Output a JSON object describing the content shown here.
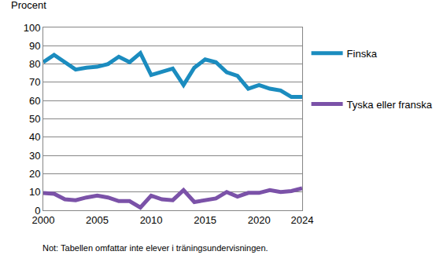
{
  "chart_data": {
    "type": "line",
    "y_label": "Procent",
    "note": "Not: Tabellen omfattar inte elever i träningsundervisningen.",
    "x": [
      2000,
      2001,
      2002,
      2003,
      2004,
      2005,
      2006,
      2007,
      2008,
      2009,
      2010,
      2011,
      2012,
      2013,
      2014,
      2015,
      2016,
      2017,
      2018,
      2019,
      2020,
      2021,
      2022,
      2023,
      2024
    ],
    "series": [
      {
        "name": "Finska",
        "color": "#1b8cbf",
        "values": [
          81,
          85,
          81,
          77,
          78,
          78.5,
          80,
          84,
          81,
          86,
          74,
          76,
          77.5,
          68.5,
          78,
          82.5,
          81,
          75.5,
          73.5,
          66.5,
          68.5,
          66.5,
          65.5,
          62,
          62
        ]
      },
      {
        "name": "Tyska eller franska",
        "color": "#7b52a8",
        "values": [
          9.5,
          9,
          6,
          5.5,
          7,
          8,
          7,
          5,
          5,
          1.5,
          8,
          6,
          5.5,
          11,
          4.5,
          5.5,
          6.5,
          10,
          7.5,
          9.5,
          9.5,
          11,
          10,
          10.5,
          12
        ]
      }
    ],
    "xlim": [
      2000,
      2024
    ],
    "xticks": [
      2000,
      2005,
      2010,
      2015,
      2020,
      2024
    ],
    "ylim": [
      0,
      100
    ],
    "yticks": [
      0,
      10,
      20,
      30,
      40,
      50,
      60,
      70,
      80,
      90,
      100
    ],
    "grid": true,
    "legend": "right"
  }
}
